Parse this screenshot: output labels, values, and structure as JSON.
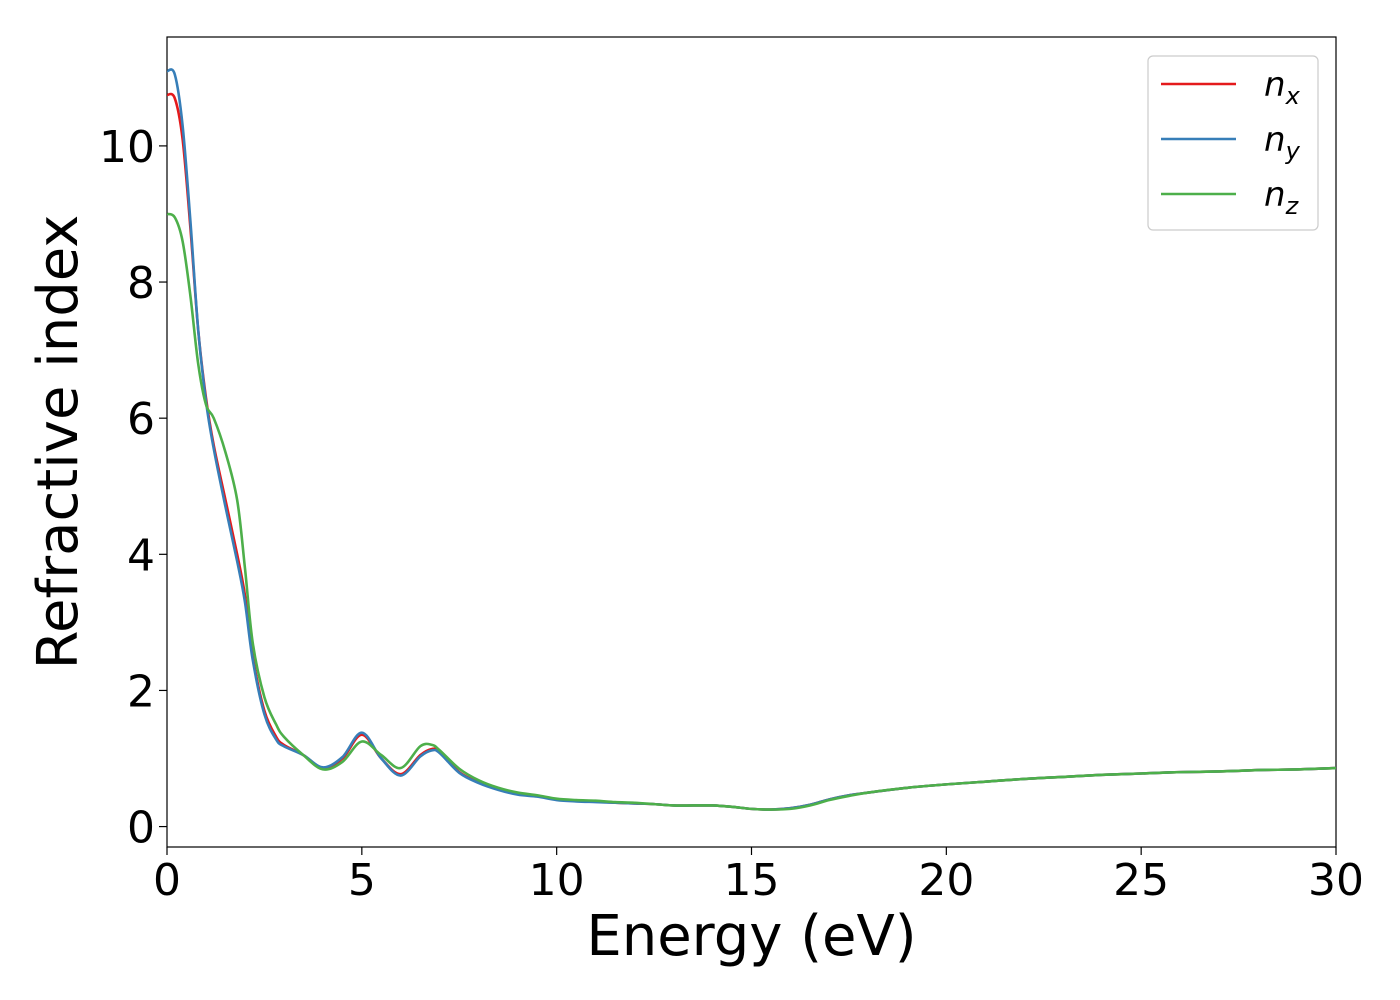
{
  "chart_data": {
    "type": "line",
    "xlabel": "Energy (eV)",
    "ylabel": "Refractive index",
    "xlim": [
      0,
      30
    ],
    "ylim": [
      -0.3,
      11.6
    ],
    "xticks": [
      "0",
      "5",
      "10",
      "15",
      "20",
      "25",
      "30"
    ],
    "yticks": [
      "0",
      "2",
      "4",
      "6",
      "8",
      "10"
    ],
    "grid": false,
    "legend_position": "top-right",
    "series": [
      {
        "name": "n",
        "subscript": "x",
        "color": "#e41a1c",
        "x": [
          0,
          0.2,
          0.4,
          0.6,
          0.8,
          1,
          1.2,
          1.5,
          1.8,
          2,
          2.2,
          2.5,
          2.8,
          3,
          3.5,
          4,
          4.5,
          5,
          5.5,
          6,
          6.5,
          6.8,
          7,
          7.5,
          8,
          8.5,
          9,
          9.5,
          10,
          10.5,
          11,
          11.5,
          12,
          12.5,
          13,
          13.5,
          14,
          14.5,
          15,
          15.5,
          16,
          16.5,
          17,
          17.5,
          18,
          19,
          20,
          21,
          22,
          23,
          24,
          25,
          26,
          27,
          28,
          29,
          30
        ],
        "y": [
          10.75,
          10.7,
          10.1,
          8.8,
          7.3,
          6.3,
          5.6,
          4.8,
          4.0,
          3.4,
          2.5,
          1.7,
          1.32,
          1.2,
          1.05,
          0.86,
          1.0,
          1.35,
          1.0,
          0.77,
          1.05,
          1.14,
          1.1,
          0.8,
          0.65,
          0.55,
          0.48,
          0.45,
          0.4,
          0.38,
          0.37,
          0.35,
          0.34,
          0.33,
          0.31,
          0.31,
          0.31,
          0.29,
          0.26,
          0.25,
          0.27,
          0.32,
          0.4,
          0.46,
          0.5,
          0.57,
          0.62,
          0.66,
          0.7,
          0.73,
          0.76,
          0.78,
          0.8,
          0.81,
          0.83,
          0.84,
          0.86
        ]
      },
      {
        "name": "n",
        "subscript": "y",
        "color": "#377eb8",
        "x": [
          0,
          0.2,
          0.4,
          0.6,
          0.8,
          1,
          1.2,
          1.5,
          1.8,
          2,
          2.2,
          2.5,
          2.8,
          3,
          3.5,
          4,
          4.5,
          5,
          5.5,
          6,
          6.5,
          6.8,
          7,
          7.5,
          8,
          8.5,
          9,
          9.5,
          10,
          10.5,
          11,
          11.5,
          12,
          12.5,
          13,
          13.5,
          14,
          14.5,
          15,
          15.5,
          16,
          16.5,
          17,
          17.5,
          18,
          19,
          20,
          21,
          22,
          23,
          24,
          25,
          26,
          27,
          28,
          29,
          30
        ],
        "y": [
          11.1,
          11.05,
          10.3,
          8.9,
          7.3,
          6.25,
          5.55,
          4.7,
          3.9,
          3.3,
          2.45,
          1.65,
          1.28,
          1.18,
          1.05,
          0.87,
          1.02,
          1.38,
          1.0,
          0.75,
          1.03,
          1.12,
          1.08,
          0.79,
          0.64,
          0.54,
          0.47,
          0.44,
          0.39,
          0.37,
          0.36,
          0.35,
          0.34,
          0.33,
          0.31,
          0.31,
          0.31,
          0.29,
          0.26,
          0.25,
          0.27,
          0.32,
          0.4,
          0.46,
          0.5,
          0.57,
          0.62,
          0.66,
          0.7,
          0.73,
          0.76,
          0.78,
          0.8,
          0.81,
          0.83,
          0.84,
          0.86
        ]
      },
      {
        "name": "n",
        "subscript": "z",
        "color": "#4daf4a",
        "x": [
          0,
          0.2,
          0.4,
          0.6,
          0.8,
          1,
          1.2,
          1.5,
          1.8,
          2,
          2.2,
          2.5,
          2.8,
          3,
          3.5,
          4,
          4.5,
          5,
          5.5,
          6,
          6.5,
          6.8,
          7,
          7.5,
          8,
          8.5,
          9,
          9.5,
          10,
          10.5,
          11,
          11.5,
          12,
          12.5,
          13,
          13.5,
          14,
          14.5,
          15,
          15.5,
          16,
          16.5,
          17,
          17.5,
          18,
          19,
          20,
          21,
          22,
          23,
          24,
          25,
          26,
          27,
          28,
          29,
          30
        ],
        "y": [
          9.0,
          8.95,
          8.6,
          7.8,
          6.8,
          6.2,
          6.0,
          5.5,
          4.8,
          3.8,
          2.7,
          1.9,
          1.5,
          1.32,
          1.05,
          0.84,
          0.95,
          1.25,
          1.05,
          0.86,
          1.18,
          1.2,
          1.12,
          0.85,
          0.68,
          0.57,
          0.5,
          0.46,
          0.41,
          0.39,
          0.38,
          0.36,
          0.35,
          0.33,
          0.31,
          0.31,
          0.31,
          0.29,
          0.26,
          0.25,
          0.26,
          0.31,
          0.39,
          0.45,
          0.5,
          0.57,
          0.62,
          0.66,
          0.7,
          0.73,
          0.76,
          0.78,
          0.8,
          0.81,
          0.83,
          0.84,
          0.86
        ]
      }
    ]
  }
}
